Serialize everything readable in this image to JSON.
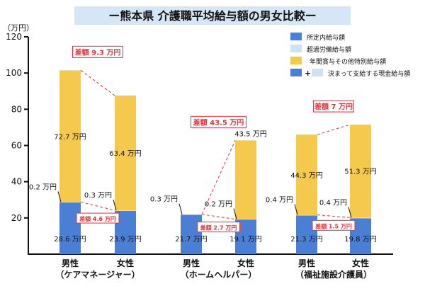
{
  "chart_data": {
    "type": "bar",
    "stacked": true,
    "title": "ー熊本県 介護職平均給与額の男女比較ー",
    "ylabel": "（万円）",
    "ylim": [
      0,
      120
    ],
    "yticks": [
      20,
      40,
      60,
      80,
      100,
      120
    ],
    "grid": false,
    "legend_position": "top-right",
    "groups": [
      {
        "label": "（ケアマネージャー）",
        "total_diff_label": "差額 9.3 万円",
        "base_diff_label": "差額 4.6 万円"
      },
      {
        "label": "（ホームヘルパー）",
        "total_diff_label": "差額 43.5 万円",
        "base_diff_label": "差額 2.7 万円"
      },
      {
        "label": "（福祉施設介護員）",
        "total_diff_label": "差額 7 万円",
        "base_diff_label": "差額 1.5 万円"
      }
    ],
    "categories": [
      "男性",
      "女性",
      "男性",
      "女性",
      "男性",
      "女性"
    ],
    "series": [
      {
        "name": "所定内給与額",
        "color": "#4a7fd4",
        "values": [
          28.6,
          23.9,
          21.7,
          19.1,
          21.3,
          19.8
        ],
        "labels": [
          "28.6 万円",
          "23.9 万円",
          "21.7 万円",
          "19.1 万円",
          "21.3 万円",
          "19.8 万円"
        ]
      },
      {
        "name": "超過労働給与額",
        "color": "#cfe2f5",
        "values": [
          0.2,
          0.3,
          0.3,
          0.2,
          0.4,
          0.4
        ],
        "labels": [
          "0.2 万円",
          "0.3 万円",
          "0.3 万円",
          "0.2 万円",
          "0.4 万円",
          "0.4 万円"
        ]
      },
      {
        "name": "年間賞与その他特別給与額",
        "color": "#f5c94e",
        "values": [
          72.7,
          63.4,
          0,
          43.5,
          44.3,
          51.3
        ],
        "labels": [
          "72.7 万円",
          "63.4 万円",
          "",
          "43.5 万円",
          "44.3 万円",
          "51.3 万円"
        ]
      }
    ],
    "legend_extra": {
      "plus": "+",
      "label": "決まって支給する現金給与額"
    },
    "diff_color": "#e8303a"
  }
}
